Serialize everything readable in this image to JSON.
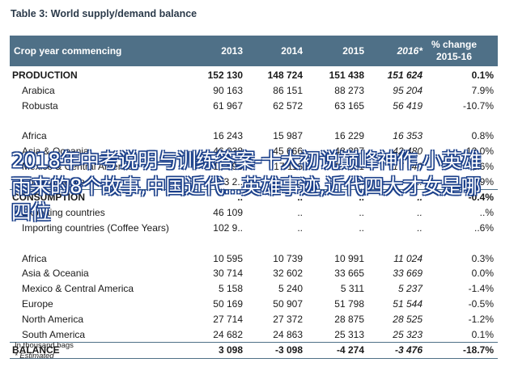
{
  "title": "Table 3: World supply/demand balance",
  "header": {
    "label": "Crop year commencing",
    "cols": [
      "2013",
      "2014",
      "2015",
      "2016*"
    ],
    "pct_line1": "% change",
    "pct_line2": "2015-16"
  },
  "sections": [
    {
      "main": {
        "label": "PRODUCTION",
        "v": [
          "152 130",
          "148 724",
          "151 438",
          "151 624"
        ],
        "pct": "0.1%"
      },
      "rows": [
        {
          "label": "Arabica",
          "v": [
            "90 163",
            "86 151",
            "88 273",
            "95 204"
          ],
          "pct": "7.9%"
        },
        {
          "label": "Robusta",
          "v": [
            "61 967",
            "62 572",
            "63 165",
            "56 419"
          ],
          "pct": "-10.7%"
        },
        {
          "label": "",
          "v": [
            "",
            "",
            "",
            ""
          ],
          "pct": ""
        },
        {
          "label": "Africa",
          "v": [
            "16 243",
            "15 987",
            "16 229",
            "16 353"
          ],
          "pct": "0.8%"
        },
        {
          "label": "Asia & Oceania",
          "v": [
            "46 038",
            "45 666",
            "48 297",
            "42 480"
          ],
          "pct": "-12.0%"
        },
        {
          "label": "Mexico & Central America",
          "v": [
            "16 598",
            "17 116",
            "17 291",
            "17 740"
          ],
          "pct": "2.6%"
        },
        {
          "label": "South America",
          "v": [
            "73 2..",
            "..",
            "..",
            ".."
          ],
          "pct": "7.9%"
        }
      ]
    },
    {
      "main": {
        "label": "CONSUMPTION",
        "v": [
          "..",
          "..",
          "..",
          ".."
        ],
        "pct": "-0.4%"
      },
      "rows": [
        {
          "label": "Exporting countries",
          "v": [
            "46 109",
            "..",
            "..",
            ".."
          ],
          "pct": "..%"
        },
        {
          "label": "Importing countries (Coffee Years)",
          "v": [
            "102 9..",
            "..",
            "..",
            ".."
          ],
          "pct": "..6%"
        },
        {
          "label": "",
          "v": [
            "",
            "",
            "",
            ""
          ],
          "pct": ""
        },
        {
          "label": "Africa",
          "v": [
            "10 595",
            "10 739",
            "10 991",
            "11 024"
          ],
          "pct": "0.3%"
        },
        {
          "label": "Asia & Oceania",
          "v": [
            "30 714",
            "32 602",
            "33 665",
            "33 669"
          ],
          "pct": "0.0%"
        },
        {
          "label": "Mexico & Central America",
          "v": [
            "5 158",
            "5 240",
            "5 311",
            "5 237"
          ],
          "pct": "-1.4%"
        },
        {
          "label": "Europe",
          "v": [
            "50 169",
            "50 907",
            "51 798",
            "51 544"
          ],
          "pct": "-0.5%"
        },
        {
          "label": "North America",
          "v": [
            "27 714",
            "27 372",
            "28 875",
            "28 525"
          ],
          "pct": "-1.2%"
        },
        {
          "label": "South America",
          "v": [
            "24 682",
            "24 863",
            "25 313",
            "25 323"
          ],
          "pct": "0.1%"
        }
      ]
    }
  ],
  "balance": {
    "label": "BALANCE",
    "v": [
      "3 098",
      "-3 098",
      "-4 274",
      "-3 476"
    ],
    "pct": "-18.7%"
  },
  "notes": [
    "In thousand bags",
    "* Estimated"
  ],
  "overlay_text": "2018年中考说明与训练答案-十大初说巅峰神作,小英雄雨来的8个故事,中国近代...英雄事迹,近代四大才女是哪四位"
}
